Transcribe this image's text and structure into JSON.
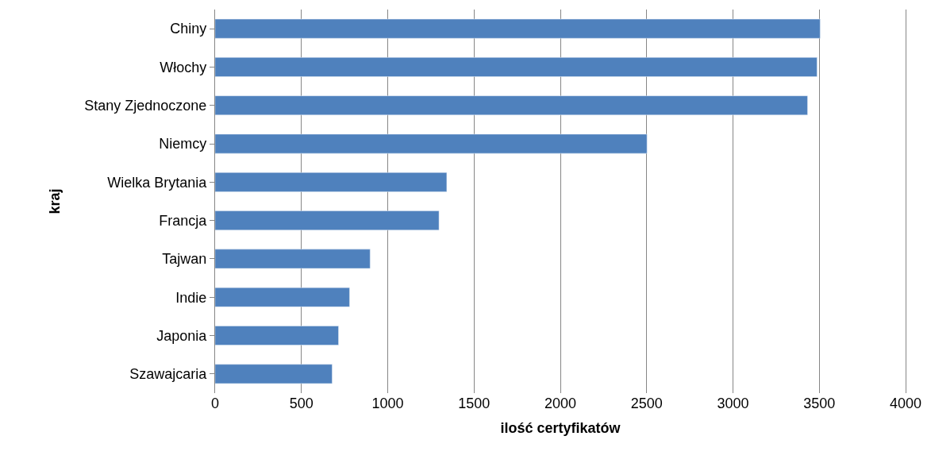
{
  "chart_data": {
    "type": "bar",
    "orientation": "horizontal",
    "xlabel": "ilość certyfikatów",
    "ylabel": "kraj",
    "categories": [
      "Chiny",
      "Włochy",
      "Stany Zjednoczone",
      "Niemcy",
      "Wielka Brytania",
      "Francja",
      "Tajwan",
      "Indie",
      "Japonia",
      "Szawajcaria"
    ],
    "values": [
      3505,
      3487,
      3432,
      2502,
      1342,
      1297,
      898,
      779,
      715,
      678
    ],
    "color": "#4f81bd",
    "xlim": [
      0,
      4000
    ],
    "xticks": [
      0,
      500,
      1000,
      1500,
      2000,
      2500,
      3000,
      3500,
      4000
    ],
    "grid": "x"
  }
}
